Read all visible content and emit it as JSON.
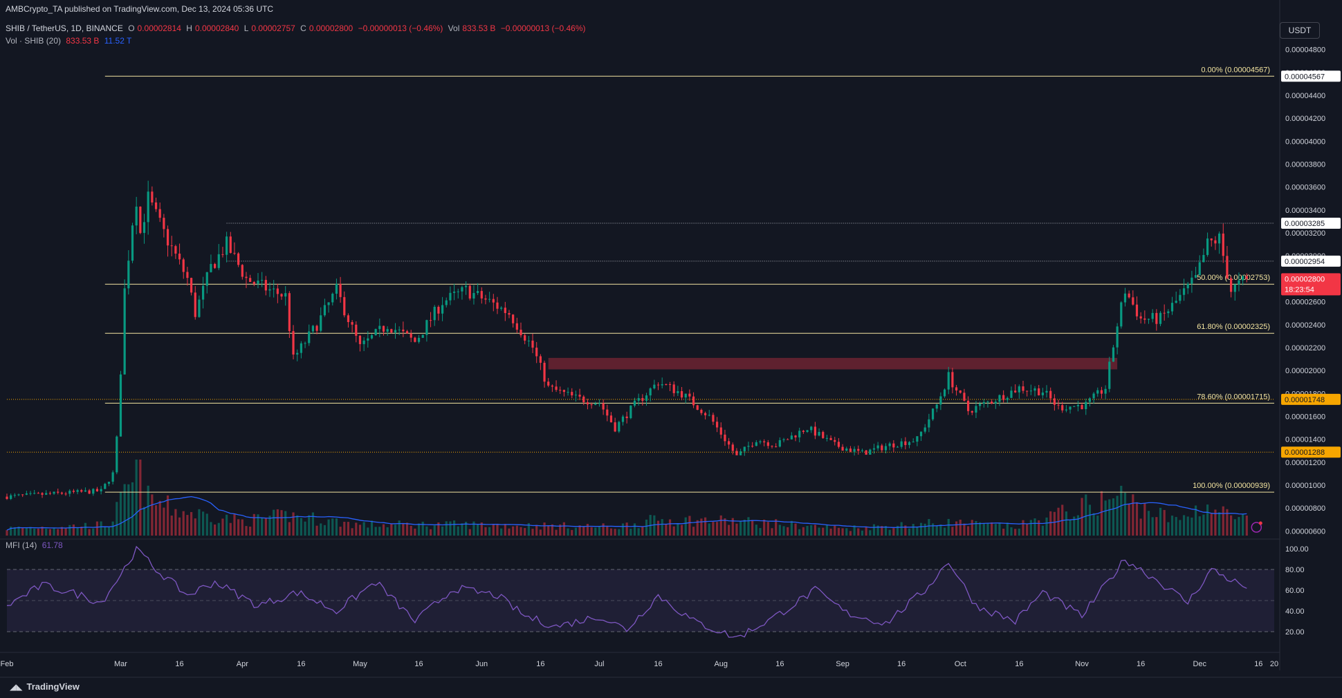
{
  "header": {
    "published": "AMBCrypto_TA published on TradingView.com, Dec 13, 2024 05:36 UTC",
    "symbol": "SHIB / TetherUS, 1D, BINANCE",
    "ohlc": {
      "o_label": "O",
      "o": "0.00002814",
      "h_label": "H",
      "h": "0.00002840",
      "l_label": "L",
      "l": "0.00002757",
      "c_label": "C",
      "c": "0.00002800",
      "change": "−0.00000013 (−0.46%)",
      "vol_label": "Vol",
      "vol": "833.53 B",
      "vol_change": "−0.00000013 (−0.46%)"
    },
    "volume_line": {
      "label": "Vol · SHIB (20)",
      "v1": "833.53 B",
      "v2": "11.52 T"
    },
    "mfi_line": {
      "label": "MFI (14)",
      "value": "61.78"
    }
  },
  "currency_button": "USDT",
  "brand": "TradingView",
  "colors": {
    "up": "#089981",
    "down": "#f23645",
    "fib": "#f5e6a1",
    "accent": "#f7a600",
    "mfi": "#7e57c2",
    "bg": "#131722"
  },
  "chart_data": {
    "type": "candlestick",
    "x_axis": {
      "tick_labels": [
        "Feb",
        "Mar",
        "16",
        "Apr",
        "16",
        "May",
        "16",
        "Jun",
        "16",
        "Jul",
        "16",
        "Aug",
        "16",
        "Sep",
        "16",
        "Oct",
        "16",
        "Nov",
        "16",
        "Dec",
        "16",
        "20"
      ],
      "range": [
        "2024-02-01",
        "2024-12-20"
      ]
    },
    "price_axis": {
      "range": [
        5.3e-06,
        4.87e-05
      ],
      "tick_labels": [
        "0.00004800",
        "0.00004600",
        "0.00004400",
        "0.00004200",
        "0.00004000",
        "0.00003800",
        "0.00003600",
        "0.00003400",
        "0.00003200",
        "0.00003000",
        "0.00002800",
        "0.00002600",
        "0.00002400",
        "0.00002200",
        "0.00002000",
        "0.00001800",
        "0.00001600",
        "0.00001400",
        "0.00001200",
        "0.00001000",
        "0.00000800",
        "0.00000600"
      ]
    },
    "fib_levels": [
      {
        "label": "0.00% (0.00004567)",
        "value": 4.567e-05
      },
      {
        "label": "50.00% (0.00002753)",
        "value": 2.753e-05
      },
      {
        "label": "61.80% (0.00002325)",
        "value": 2.325e-05
      },
      {
        "label": "78.60% (0.00001715)",
        "value": 1.715e-05
      },
      {
        "label": "100.00% (0.00000939)",
        "value": 9.39e-06
      }
    ],
    "horizontal_levels": [
      {
        "label": "0.00003285",
        "value": 3.285e-05,
        "style": "dotted"
      },
      {
        "label": "0.00002954",
        "value": 2.954e-05,
        "style": "dotted"
      },
      {
        "label": "0.00001748",
        "value": 1.748e-05,
        "style": "dotted-orange"
      },
      {
        "label": "0.00001288",
        "value": 1.288e-05,
        "style": "dotted-orange"
      }
    ],
    "price_badges": [
      {
        "label": "0.00004567",
        "value": 4.567e-05,
        "bg": "#ffffff",
        "fg": "#131722"
      },
      {
        "label": "0.00003285",
        "value": 3.285e-05,
        "bg": "#ffffff",
        "fg": "#131722"
      },
      {
        "label": "0.00002954",
        "value": 2.954e-05,
        "bg": "#ffffff",
        "fg": "#131722"
      },
      {
        "label": "0.00001748",
        "value": 1.748e-05,
        "bg": "#f7a600",
        "fg": "#131722"
      },
      {
        "label": "0.00001288",
        "value": 1.288e-05,
        "bg": "#f7a600",
        "fg": "#131722"
      }
    ],
    "current_price": {
      "label": "0.00002800",
      "countdown": "18:23:54",
      "value": 2.8e-05
    },
    "zone": {
      "date_start": "2024-06-18",
      "date_end": "2024-11-10",
      "low": 2.01e-05,
      "high": 2.11e-05
    },
    "anchors": [
      [
        "2024-02-01",
        9e-06
      ],
      [
        "2024-02-15",
        9.3e-06
      ],
      [
        "2024-02-25",
        9.5e-06
      ],
      [
        "2024-02-28",
        1.1e-05
      ],
      [
        "2024-02-29",
        1.4e-05
      ],
      [
        "2024-03-01",
        2e-05
      ],
      [
        "2024-03-02",
        2.7e-05
      ],
      [
        "2024-03-04",
        3.3e-05
      ],
      [
        "2024-03-05",
        3.5e-05
      ],
      [
        "2024-03-06",
        3.2e-05
      ],
      [
        "2024-03-08",
        3.5e-05
      ],
      [
        "2024-03-12",
        3.2e-05
      ],
      [
        "2024-03-15",
        3e-05
      ],
      [
        "2024-03-18",
        2.8e-05
      ],
      [
        "2024-03-20",
        2.5e-05
      ],
      [
        "2024-03-24",
        2.9e-05
      ],
      [
        "2024-03-28",
        3.1e-05
      ],
      [
        "2024-04-02",
        2.8e-05
      ],
      [
        "2024-04-08",
        2.7e-05
      ],
      [
        "2024-04-12",
        2.65e-05
      ],
      [
        "2024-04-14",
        2.1e-05
      ],
      [
        "2024-04-20",
        2.4e-05
      ],
      [
        "2024-04-25",
        2.7e-05
      ],
      [
        "2024-05-01",
        2.2e-05
      ],
      [
        "2024-05-08",
        2.4e-05
      ],
      [
        "2024-05-15",
        2.25e-05
      ],
      [
        "2024-05-22",
        2.6e-05
      ],
      [
        "2024-05-28",
        2.7e-05
      ],
      [
        "2024-06-03",
        2.6e-05
      ],
      [
        "2024-06-08",
        2.5e-05
      ],
      [
        "2024-06-14",
        2.2e-05
      ],
      [
        "2024-06-18",
        1.85e-05
      ],
      [
        "2024-06-25",
        1.76e-05
      ],
      [
        "2024-07-01",
        1.72e-05
      ],
      [
        "2024-07-05",
        1.5e-05
      ],
      [
        "2024-07-10",
        1.7e-05
      ],
      [
        "2024-07-16",
        1.9e-05
      ],
      [
        "2024-07-22",
        1.8e-05
      ],
      [
        "2024-07-29",
        1.6e-05
      ],
      [
        "2024-08-05",
        1.25e-05
      ],
      [
        "2024-08-10",
        1.4e-05
      ],
      [
        "2024-08-15",
        1.35e-05
      ],
      [
        "2024-08-23",
        1.5e-05
      ],
      [
        "2024-08-30",
        1.35e-05
      ],
      [
        "2024-09-06",
        1.28e-05
      ],
      [
        "2024-09-13",
        1.35e-05
      ],
      [
        "2024-09-20",
        1.4e-05
      ],
      [
        "2024-09-25",
        1.7e-05
      ],
      [
        "2024-09-28",
        1.95e-05
      ],
      [
        "2024-10-03",
        1.65e-05
      ],
      [
        "2024-10-10",
        1.75e-05
      ],
      [
        "2024-10-16",
        1.85e-05
      ],
      [
        "2024-10-22",
        1.82e-05
      ],
      [
        "2024-10-26",
        1.68e-05
      ],
      [
        "2024-11-02",
        1.7e-05
      ],
      [
        "2024-11-07",
        1.85e-05
      ],
      [
        "2024-11-10",
        2.4e-05
      ],
      [
        "2024-11-12",
        2.7e-05
      ],
      [
        "2024-11-16",
        2.45e-05
      ],
      [
        "2024-11-21",
        2.45e-05
      ],
      [
        "2024-11-25",
        2.6e-05
      ],
      [
        "2024-11-30",
        2.8e-05
      ],
      [
        "2024-12-03",
        3.1e-05
      ],
      [
        "2024-12-06",
        3.15e-05
      ],
      [
        "2024-12-09",
        2.7e-05
      ],
      [
        "2024-12-11",
        2.75e-05
      ],
      [
        "2024-12-13",
        2.8e-05
      ]
    ],
    "volume_anchors": [
      [
        "2024-02-01",
        0.1
      ],
      [
        "2024-02-27",
        0.15
      ],
      [
        "2024-03-01",
        0.45
      ],
      [
        "2024-03-04",
        0.7
      ],
      [
        "2024-03-05",
        0.95
      ],
      [
        "2024-03-08",
        0.5
      ],
      [
        "2024-03-15",
        0.35
      ],
      [
        "2024-04-01",
        0.2
      ],
      [
        "2024-04-13",
        0.28
      ],
      [
        "2024-05-01",
        0.15
      ],
      [
        "2024-06-01",
        0.15
      ],
      [
        "2024-07-05",
        0.12
      ],
      [
        "2024-07-16",
        0.22
      ],
      [
        "2024-08-05",
        0.2
      ],
      [
        "2024-09-01",
        0.1
      ],
      [
        "2024-09-28",
        0.18
      ],
      [
        "2024-10-15",
        0.12
      ],
      [
        "2024-11-11",
        0.55
      ],
      [
        "2024-11-14",
        0.45
      ],
      [
        "2024-11-25",
        0.2
      ],
      [
        "2024-12-02",
        0.42
      ],
      [
        "2024-12-10",
        0.25
      ],
      [
        "2024-12-13",
        0.22
      ]
    ],
    "mfi": {
      "label": "MFI (14)",
      "value": 61.78,
      "range": [
        8,
        104
      ],
      "tick_labels": [
        "100.00",
        "80.00",
        "60.00",
        "40.00",
        "20.00"
      ],
      "overbought": 80,
      "oversold": 20,
      "middle": 50,
      "anchors": [
        [
          "2024-02-01",
          45
        ],
        [
          "2024-02-10",
          65
        ],
        [
          "2024-02-20",
          55
        ],
        [
          "2024-02-25",
          48
        ],
        [
          "2024-03-01",
          75
        ],
        [
          "2024-03-05",
          100
        ],
        [
          "2024-03-10",
          80
        ],
        [
          "2024-03-18",
          55
        ],
        [
          "2024-03-25",
          68
        ],
        [
          "2024-04-05",
          45
        ],
        [
          "2024-04-15",
          58
        ],
        [
          "2024-04-25",
          40
        ],
        [
          "2024-05-05",
          68
        ],
        [
          "2024-05-15",
          30
        ],
        [
          "2024-05-25",
          62
        ],
        [
          "2024-06-05",
          55
        ],
        [
          "2024-06-12",
          35
        ],
        [
          "2024-06-20",
          25
        ],
        [
          "2024-07-01",
          35
        ],
        [
          "2024-07-08",
          22
        ],
        [
          "2024-07-16",
          55
        ],
        [
          "2024-07-25",
          30
        ],
        [
          "2024-08-05",
          14
        ],
        [
          "2024-08-15",
          35
        ],
        [
          "2024-08-25",
          60
        ],
        [
          "2024-09-02",
          38
        ],
        [
          "2024-09-12",
          28
        ],
        [
          "2024-09-22",
          60
        ],
        [
          "2024-09-28",
          88
        ],
        [
          "2024-10-05",
          45
        ],
        [
          "2024-10-15",
          30
        ],
        [
          "2024-10-22",
          58
        ],
        [
          "2024-11-01",
          35
        ],
        [
          "2024-11-12",
          90
        ],
        [
          "2024-11-20",
          70
        ],
        [
          "2024-11-28",
          48
        ],
        [
          "2024-12-04",
          80
        ],
        [
          "2024-12-13",
          62
        ]
      ]
    }
  }
}
